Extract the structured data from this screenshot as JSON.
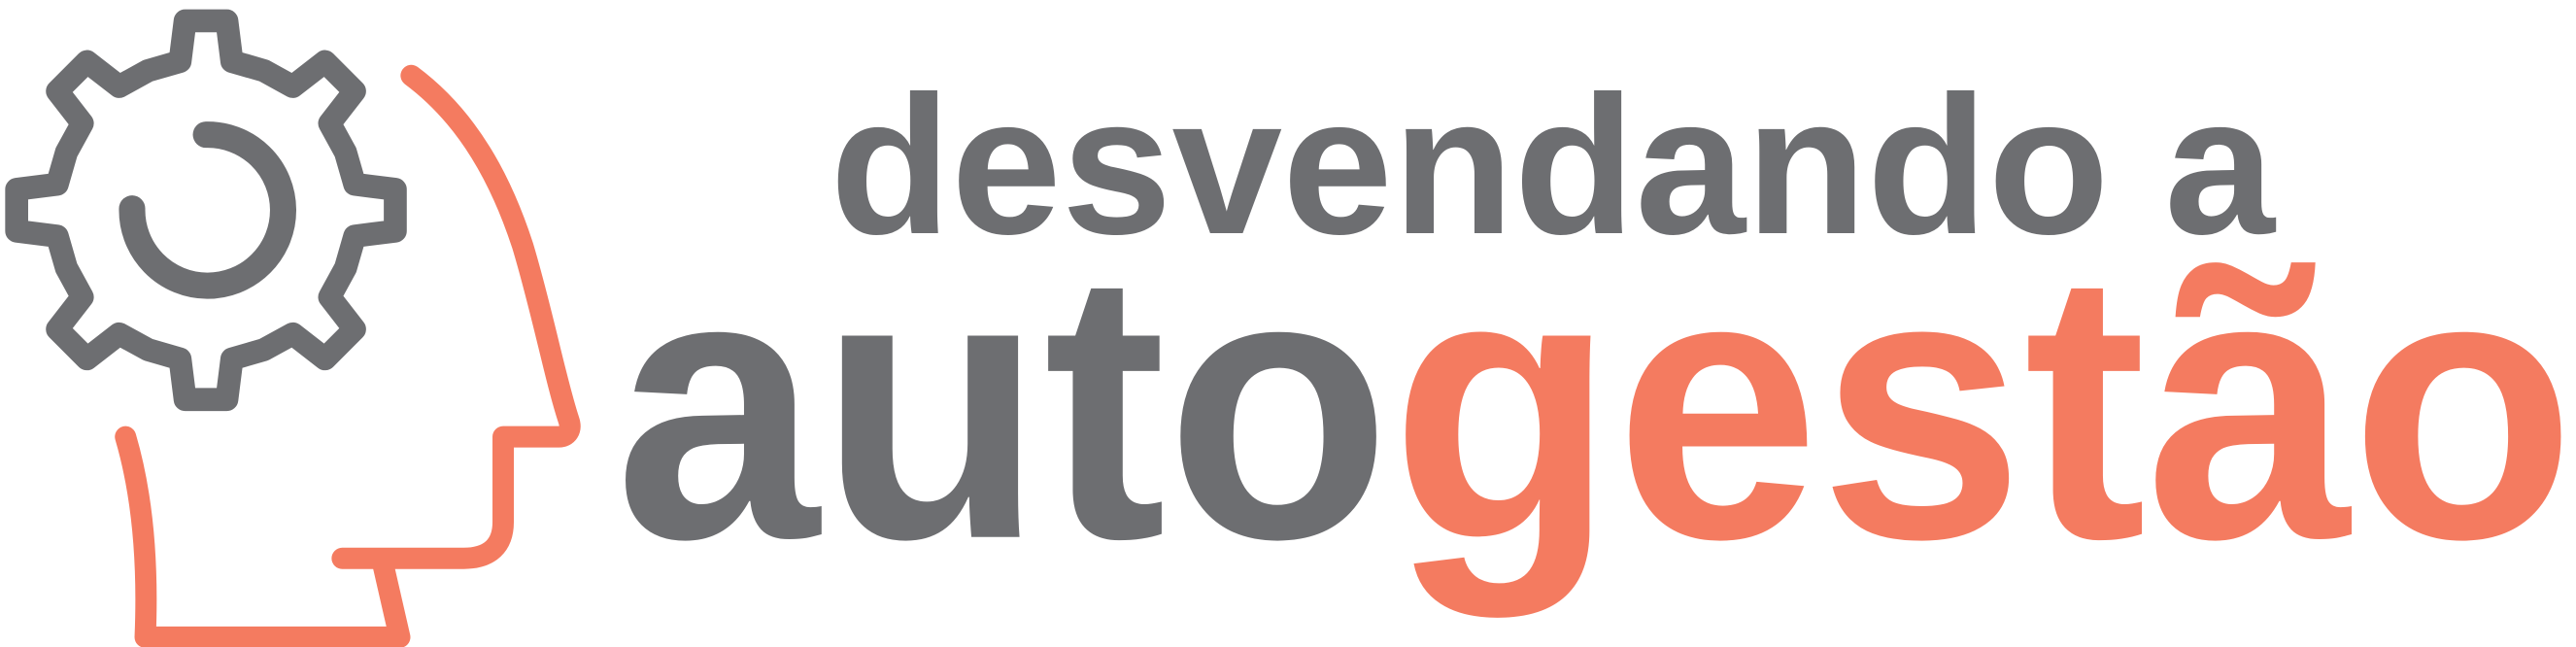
{
  "tagline": "desvendando a",
  "title": {
    "part1": "auto",
    "part2": "gestão"
  }
}
